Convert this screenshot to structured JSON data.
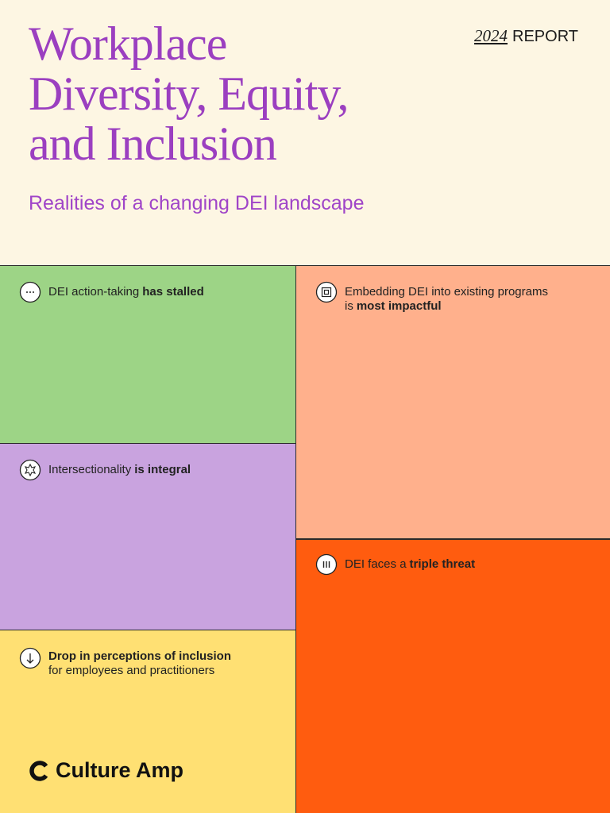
{
  "header": {
    "year": "2024",
    "report": "REPORT",
    "title_lines": [
      "Workplace",
      "Diversity, Equity,",
      "and Inclusion"
    ],
    "subtitle": "Realities of a changing DEI landscape"
  },
  "cards": [
    {
      "text": "DEI action-taking",
      "emphasis": "has stalled"
    },
    {
      "text": "Embedding DEI into existing programs is",
      "emphasis": "most impactful"
    },
    {
      "text": "Intersectionality",
      "emphasis": "is integral"
    },
    {
      "text": "DEI faces a",
      "emphasis": "triple threat"
    },
    {
      "emphasis": "Drop in perceptions of inclusion",
      "text": "for employees and practitioners"
    }
  ],
  "brand": "Culture Amp"
}
